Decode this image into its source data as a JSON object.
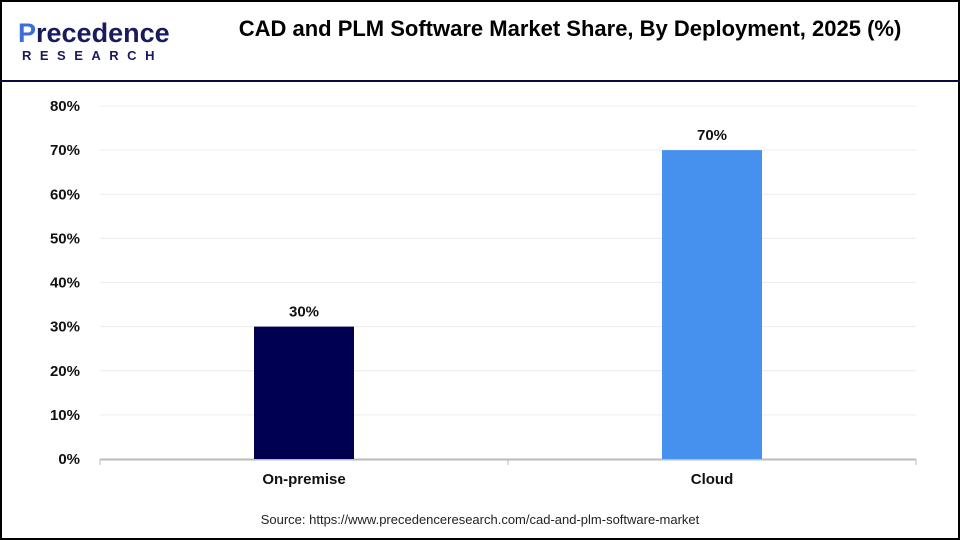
{
  "brand": {
    "logo_text": "Precedence",
    "logo_subtext": "RESEARCH"
  },
  "title": "CAD and PLM Software Market Share, By Deployment, 2025 (%)",
  "source": "Source: https://www.precedenceresearch.com/cad-and-plm-software-market",
  "chart_data": {
    "type": "bar",
    "title": "CAD and PLM Software Market Share, By Deployment, 2025 (%)",
    "categories": [
      "On-premise",
      "Cloud"
    ],
    "values": [
      30,
      70
    ],
    "data_labels": [
      "30%",
      "70%"
    ],
    "colors": [
      "#000050",
      "#4690ee"
    ],
    "xlabel": "",
    "ylabel": "",
    "ylim": [
      0,
      80
    ],
    "yticks": [
      "0%",
      "10%",
      "20%",
      "30%",
      "40%",
      "50%",
      "60%",
      "70%",
      "80%"
    ],
    "grid": true,
    "legend": "none"
  }
}
